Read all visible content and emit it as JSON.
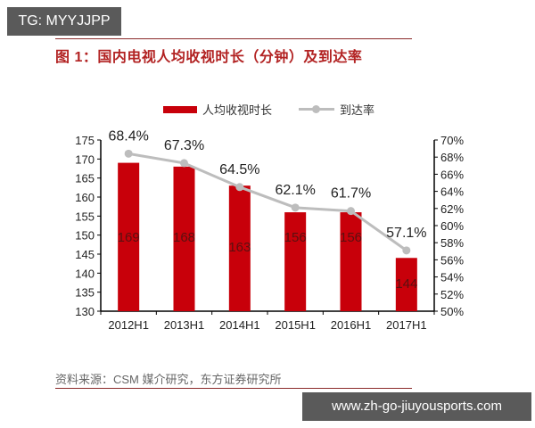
{
  "watermarks": {
    "top": "TG: MYYJJPP",
    "bottom": "www.zh-go-jiuyousports.com"
  },
  "figure": {
    "title": "图 1：国内电视人均收视时长（分钟）及到达率",
    "source": "资料来源：CSM 媒介研究，东方证券研究所"
  },
  "legend": {
    "bar_label": "人均收视时长",
    "line_label": "到达率"
  },
  "colors": {
    "bar": "#c8000a",
    "line": "#bdbdbd",
    "title": "#b22222"
  },
  "chart_data": {
    "type": "bar",
    "title": "国内电视人均收视时长（分钟）及到达率",
    "categories": [
      "2012H1",
      "2013H1",
      "2014H1",
      "2015H1",
      "2016H1",
      "2017H1"
    ],
    "series": [
      {
        "name": "人均收视时长",
        "type": "bar",
        "axis": "left",
        "values": [
          169,
          168,
          163,
          156,
          156,
          144
        ]
      },
      {
        "name": "到达率",
        "type": "line",
        "axis": "right",
        "values": [
          68.4,
          67.3,
          64.5,
          62.1,
          61.7,
          57.1
        ],
        "labels": [
          "68.4%",
          "67.3%",
          "64.5%",
          "62.1%",
          "61.7%",
          "57.1%"
        ]
      }
    ],
    "left_axis": {
      "ylim": [
        130,
        175
      ],
      "ticks": [
        "130",
        "135",
        "140",
        "145",
        "150",
        "155",
        "160",
        "165",
        "170",
        "175"
      ]
    },
    "right_axis": {
      "ylim": [
        50,
        70
      ],
      "ticks": [
        "50%",
        "52%",
        "54%",
        "56%",
        "58%",
        "60%",
        "62%",
        "64%",
        "66%",
        "68%",
        "70%"
      ]
    },
    "grid": false,
    "legend_position": "top"
  }
}
